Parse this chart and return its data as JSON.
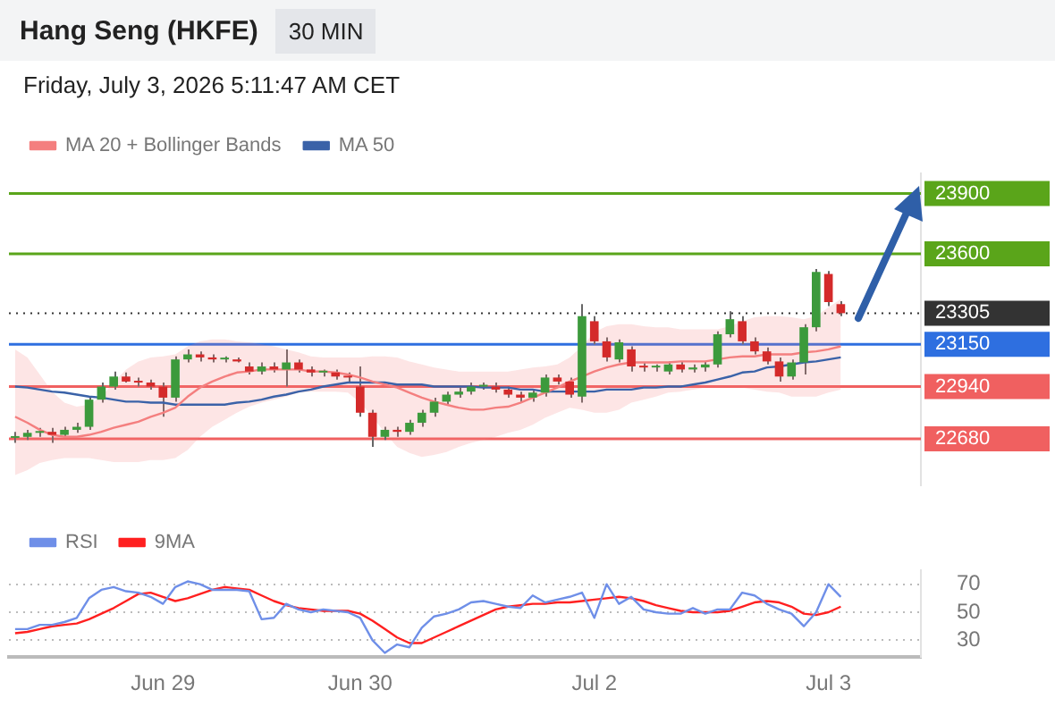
{
  "chart_data": [
    {
      "type": "candlestick",
      "title": "Hang Seng (HKFE)",
      "subtitle": "30 MIN",
      "annotations": [
        "Friday, July 3, 2026 5:11:47 AM CET"
      ],
      "categories": [
        null,
        null,
        null,
        null,
        null,
        null,
        null,
        null,
        null,
        null,
        null,
        null,
        null,
        null,
        null,
        null,
        null,
        null,
        null,
        null,
        null,
        null,
        null,
        null,
        null,
        null,
        null,
        null,
        null,
        null,
        null,
        null,
        null,
        null,
        null,
        null,
        null,
        null,
        null,
        null,
        null,
        null,
        null,
        null,
        null,
        null,
        null,
        null,
        null,
        null,
        null,
        null,
        null,
        null,
        null,
        null,
        null,
        null,
        null,
        null,
        null,
        null,
        null,
        null,
        null,
        null,
        null,
        null,
        null,
        null,
        null,
        null,
        null,
        null
      ],
      "ohlc": [
        [
          22685,
          22715,
          22660,
          22690
        ],
        [
          22690,
          22725,
          22675,
          22710
        ],
        [
          22710,
          22735,
          22690,
          22715
        ],
        [
          22715,
          22735,
          22660,
          22700
        ],
        [
          22700,
          22740,
          22685,
          22725
        ],
        [
          22725,
          22760,
          22710,
          22740
        ],
        [
          22740,
          22890,
          22725,
          22875
        ],
        [
          22875,
          22960,
          22860,
          22940
        ],
        [
          22940,
          23015,
          22925,
          22990
        ],
        [
          22990,
          23010,
          22960,
          22965
        ],
        [
          22965,
          22985,
          22940,
          22960
        ],
        [
          22960,
          22975,
          22925,
          22940
        ],
        [
          22940,
          22960,
          22790,
          22885
        ],
        [
          22885,
          23090,
          22865,
          23075
        ],
        [
          23075,
          23125,
          23060,
          23100
        ],
        [
          23100,
          23115,
          23065,
          23085
        ],
        [
          23085,
          23100,
          23060,
          23075
        ],
        [
          23075,
          23090,
          23060,
          23075
        ],
        [
          23075,
          23085,
          23060,
          23065
        ],
        [
          23040,
          23060,
          23000,
          23015
        ],
        [
          23015,
          23060,
          23000,
          23040
        ],
        [
          23040,
          23060,
          23010,
          23025
        ],
        [
          23025,
          23125,
          22940,
          23060
        ],
        [
          23060,
          23075,
          23010,
          23025
        ],
        [
          23025,
          23040,
          22990,
          23010
        ],
        [
          23010,
          23025,
          22990,
          23010
        ],
        [
          23010,
          23025,
          22975,
          22990
        ],
        [
          22990,
          23010,
          22965,
          22985
        ],
        [
          22940,
          23040,
          22790,
          22810
        ],
        [
          22810,
          22825,
          22640,
          22690
        ],
        [
          22690,
          22740,
          22675,
          22725
        ],
        [
          22725,
          22740,
          22690,
          22715
        ],
        [
          22715,
          22775,
          22700,
          22760
        ],
        [
          22760,
          22825,
          22740,
          22810
        ],
        [
          22810,
          22885,
          22790,
          22865
        ],
        [
          22865,
          22915,
          22850,
          22900
        ],
        [
          22900,
          22935,
          22885,
          22915
        ],
        [
          22915,
          22960,
          22900,
          22940
        ],
        [
          22940,
          22960,
          22925,
          22940
        ],
        [
          22940,
          22960,
          22910,
          22925
        ],
        [
          22925,
          22940,
          22885,
          22900
        ],
        [
          22900,
          22915,
          22860,
          22885
        ],
        [
          22885,
          22925,
          22865,
          22910
        ],
        [
          22910,
          23000,
          22890,
          22985
        ],
        [
          22985,
          23000,
          22950,
          22965
        ],
        [
          22965,
          22985,
          22885,
          22900
        ],
        [
          22890,
          23350,
          22860,
          23290
        ],
        [
          23265,
          23290,
          23150,
          23165
        ],
        [
          23165,
          23185,
          23065,
          23085
        ],
        [
          23075,
          23175,
          23060,
          23160
        ],
        [
          23125,
          23140,
          23015,
          23040
        ],
        [
          23040,
          23060,
          23015,
          23035
        ],
        [
          23035,
          23050,
          23015,
          23035
        ],
        [
          23015,
          23065,
          23000,
          23050
        ],
        [
          23050,
          23065,
          23010,
          23025
        ],
        [
          23025,
          23050,
          23010,
          23035
        ],
        [
          23035,
          23065,
          23015,
          23050
        ],
        [
          23050,
          23215,
          23035,
          23200
        ],
        [
          23200,
          23315,
          23185,
          23275
        ],
        [
          23265,
          23290,
          23150,
          23165
        ],
        [
          23165,
          23185,
          23100,
          23115
        ],
        [
          23115,
          23135,
          23050,
          23065
        ],
        [
          23065,
          23085,
          22965,
          22990
        ],
        [
          22990,
          23075,
          22975,
          23060
        ],
        [
          23060,
          23250,
          23000,
          23235
        ],
        [
          23235,
          23525,
          23215,
          23510
        ],
        [
          23500,
          23515,
          23340,
          23360
        ],
        [
          23350,
          23365,
          23290,
          23305
        ],
        null,
        null,
        null,
        null,
        null,
        null
      ],
      "series": [
        {
          "name": "MA 20 + Bollinger Bands",
          "type": "line",
          "color": "#f47f7f",
          "values": [
            22790,
            22760,
            22725,
            22700,
            22690,
            22690,
            22700,
            22715,
            22735,
            22750,
            22765,
            22790,
            22810,
            22835,
            22890,
            22935,
            22965,
            22990,
            23010,
            23015,
            23025,
            23025,
            23025,
            23025,
            23015,
            23015,
            23010,
            23000,
            22985,
            22965,
            22950,
            22935,
            22910,
            22885,
            22865,
            22850,
            22835,
            22825,
            22825,
            22835,
            22840,
            22860,
            22885,
            22910,
            22935,
            22965,
            22990,
            23015,
            23035,
            23050,
            23060,
            23060,
            23060,
            23060,
            23065,
            23065,
            23065,
            23075,
            23085,
            23090,
            23090,
            23100,
            23100,
            23100,
            23110,
            23115,
            23125,
            23140,
            null,
            null,
            null,
            null,
            null,
            null
          ],
          "upper": [
            23125,
            23085,
            23000,
            22915,
            22860,
            22840,
            22850,
            22890,
            22960,
            23025,
            23065,
            23085,
            23090,
            23100,
            23140,
            23165,
            23175,
            23175,
            23165,
            23160,
            23150,
            23140,
            23125,
            23110,
            23090,
            23085,
            23085,
            23085,
            23085,
            23090,
            23090,
            23085,
            23065,
            23050,
            23035,
            23025,
            23015,
            23015,
            23015,
            23015,
            23015,
            23025,
            23035,
            23040,
            23050,
            23085,
            23140,
            23210,
            23240,
            23250,
            23250,
            23240,
            23235,
            23235,
            23225,
            23225,
            23225,
            23225,
            23240,
            23265,
            23285,
            23290,
            23290,
            23285,
            23275,
            23290,
            23335,
            23375,
            null,
            null,
            null,
            null,
            null,
            null
          ],
          "lower": [
            22500,
            22525,
            22560,
            22575,
            22585,
            22585,
            22585,
            22575,
            22565,
            22565,
            22565,
            22575,
            22575,
            22585,
            22625,
            22690,
            22740,
            22775,
            22810,
            22840,
            22860,
            22875,
            22890,
            22910,
            22915,
            22915,
            22915,
            22910,
            22860,
            22790,
            22710,
            22640,
            22610,
            22590,
            22600,
            22615,
            22640,
            22660,
            22675,
            22690,
            22710,
            22725,
            22750,
            22785,
            22810,
            22835,
            22825,
            22810,
            22810,
            22825,
            22860,
            22875,
            22890,
            22910,
            22915,
            22925,
            22935,
            22935,
            22935,
            22935,
            22925,
            22915,
            22910,
            22890,
            22890,
            22890,
            22910,
            22925,
            null,
            null,
            null,
            null,
            null,
            null
          ]
        },
        {
          "name": "MA 50",
          "type": "line",
          "color": "#3a62a8",
          "values": [
            22940,
            22935,
            22925,
            22915,
            22910,
            22900,
            22890,
            22885,
            22875,
            22865,
            22865,
            22860,
            22860,
            22850,
            22850,
            22850,
            22850,
            22850,
            22860,
            22865,
            22875,
            22890,
            22900,
            22915,
            22925,
            22940,
            22950,
            22960,
            22960,
            22960,
            22960,
            22950,
            22950,
            22950,
            22940,
            22940,
            22940,
            22940,
            22935,
            22935,
            22935,
            22925,
            22925,
            22915,
            22915,
            22915,
            22915,
            22915,
            22925,
            22925,
            22925,
            22935,
            22935,
            22940,
            22940,
            22950,
            22960,
            22975,
            22990,
            23010,
            23015,
            23035,
            23040,
            23050,
            23060,
            23065,
            23075,
            23085,
            null,
            null,
            null,
            null,
            null,
            null
          ]
        }
      ],
      "ylim": [
        22450,
        24000
      ],
      "yticks": [
        22680,
        22940,
        23150,
        23305,
        23600,
        23900
      ],
      "ref_lines": [
        {
          "axis": "y",
          "value": 23900,
          "color": "#5aa51a",
          "line_style": "solid"
        },
        {
          "axis": "y",
          "value": 23600,
          "color": "#5aa51a",
          "line_style": "solid"
        },
        {
          "axis": "y",
          "value": 23305,
          "color": "#333333",
          "line_style": "dotted"
        },
        {
          "axis": "y",
          "value": 23150,
          "color": "#2e6fe0",
          "line_style": "solid"
        },
        {
          "axis": "y",
          "value": 22940,
          "color": "#f06060",
          "line_style": "solid"
        },
        {
          "axis": "y",
          "value": 22680,
          "color": "#f06060",
          "line_style": "solid"
        }
      ],
      "legend": "top left",
      "tick_labels": "y"
    },
    {
      "type": "line",
      "categories": [
        null,
        null,
        null,
        null,
        null,
        null,
        null,
        null,
        null,
        null,
        null,
        null,
        "Jun 29",
        null,
        null,
        null,
        null,
        null,
        null,
        null,
        null,
        null,
        null,
        null,
        null,
        null,
        null,
        null,
        "Jun 30",
        null,
        null,
        null,
        null,
        null,
        null,
        null,
        null,
        null,
        null,
        null,
        null,
        null,
        null,
        null,
        null,
        null,
        null,
        "Jul 2",
        null,
        null,
        null,
        null,
        null,
        null,
        null,
        null,
        null,
        null,
        null,
        null,
        null,
        null,
        null,
        null,
        null,
        null,
        "Jul 3",
        null,
        null,
        null,
        null,
        null,
        null,
        null
      ],
      "series": [
        {
          "name": "RSI",
          "color": "#6f8fe8",
          "values": [
            38,
            38,
            41,
            41,
            43,
            46,
            60,
            66,
            68,
            65,
            64,
            61,
            56,
            68,
            72,
            70,
            66,
            66,
            66,
            65,
            45,
            46,
            56,
            52,
            50,
            52,
            51,
            50,
            46,
            30,
            21,
            27,
            25,
            39,
            47,
            49,
            52,
            57,
            58,
            56,
            54,
            53,
            62,
            57,
            59,
            61,
            64,
            46,
            70,
            56,
            61,
            52,
            50,
            49,
            49,
            53,
            49,
            52,
            52,
            64,
            62,
            56,
            52,
            49,
            40,
            50,
            70,
            61,
            null,
            null,
            null,
            null,
            null,
            null
          ]
        },
        {
          "name": "9MA",
          "color": "#ff2020",
          "values": [
            35,
            36,
            38,
            40,
            41,
            42,
            45,
            49,
            53,
            58,
            63,
            64,
            61,
            58,
            60,
            63,
            66,
            68,
            67,
            66,
            62,
            58,
            55,
            53,
            52,
            51,
            51,
            51,
            49,
            44,
            38,
            32,
            28,
            28,
            32,
            36,
            40,
            44,
            48,
            52,
            54,
            55,
            56,
            56,
            57,
            57,
            58,
            59,
            60,
            61,
            60,
            58,
            55,
            53,
            51,
            50,
            50,
            50,
            51,
            54,
            57,
            58,
            57,
            54,
            49,
            48,
            50,
            54,
            null,
            null,
            null,
            null,
            null,
            null
          ]
        }
      ],
      "ylim": [
        18,
        80
      ],
      "yticks": [
        30,
        50,
        70
      ],
      "grid": "y",
      "legend": "top left"
    }
  ]
}
